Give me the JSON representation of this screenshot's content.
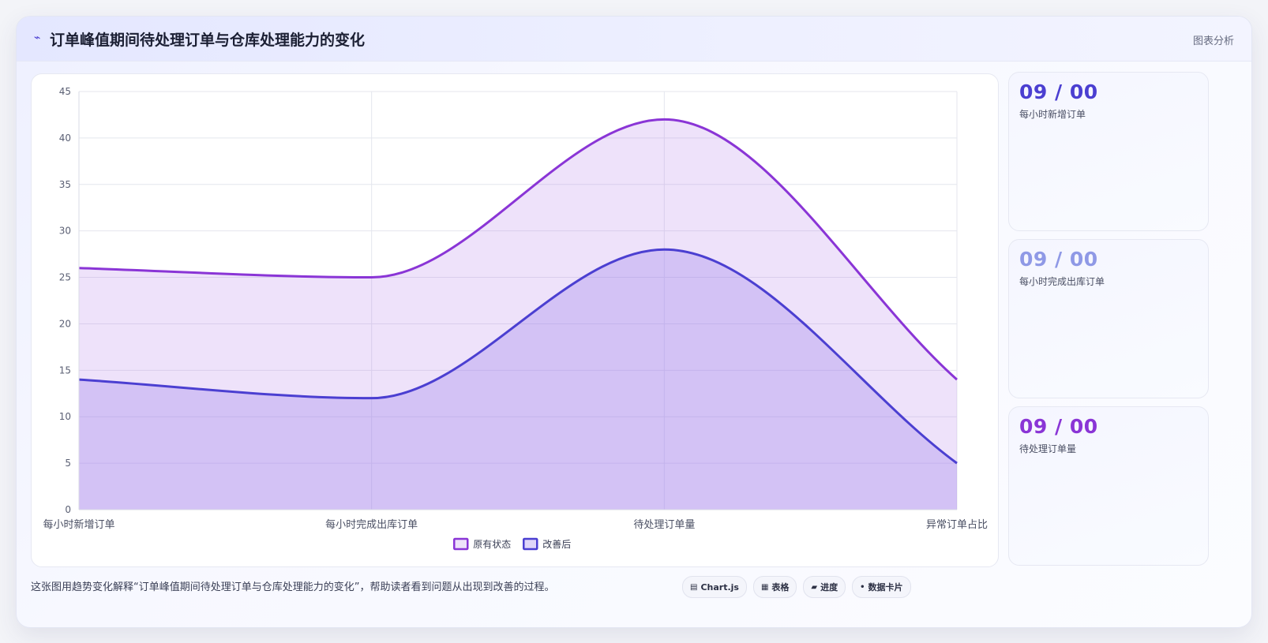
{
  "header": {
    "icon": "trend-line-icon",
    "title": "订单峰值期间待处理订单与仓库处理能力的变化",
    "tag": "图表分析"
  },
  "stats": [
    {
      "value": "09 / 00",
      "label": "每小时新增订单",
      "color": "#4b3fd1"
    },
    {
      "value": "09 / 00",
      "label": "每小时完成出库订单",
      "color": "#8f99e6"
    },
    {
      "value": "09 / 00",
      "label": "待处理订单量",
      "color": "#8a35d6"
    }
  ],
  "footer": {
    "description": "这张图用趋势变化解释“订单峰值期间待处理订单与仓库处理能力的变化”，帮助读者看到问题从出现到改善的过程。",
    "pills": [
      {
        "icon": "chart-icon",
        "glyph": "▤",
        "label": "Chart.js"
      },
      {
        "icon": "table-icon",
        "glyph": "▦",
        "label": "表格"
      },
      {
        "icon": "progress-icon",
        "glyph": "▰",
        "label": "进度"
      },
      {
        "icon": "card-icon",
        "glyph": "•",
        "label": "数据卡片"
      }
    ]
  },
  "chart_data": {
    "type": "area",
    "categories": [
      "每小时新增订单",
      "每小时完成出库订单",
      "待处理订单量",
      "异常订单占比"
    ],
    "series": [
      {
        "name": "原有状态",
        "values": [
          26,
          25,
          42,
          14
        ],
        "color": "#8a35d6",
        "fill": "rgba(176,124,230,0.22)"
      },
      {
        "name": "改善后",
        "values": [
          14,
          12,
          28,
          5
        ],
        "color": "#4b3fd1",
        "fill": "rgba(150,120,235,0.30)"
      }
    ],
    "ylim": [
      0,
      45
    ],
    "yticks": [
      0,
      5,
      10,
      15,
      20,
      25,
      30,
      35,
      40,
      45
    ],
    "grid": true,
    "legend": "bottom"
  }
}
